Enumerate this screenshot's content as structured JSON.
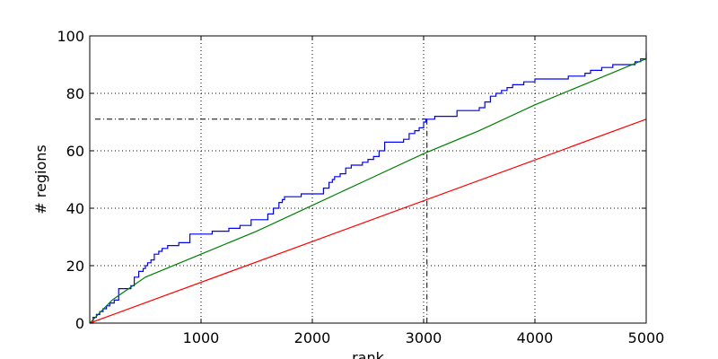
{
  "chart_data": {
    "type": "line",
    "title": "",
    "xlabel": "rank",
    "ylabel": "# regions",
    "xlim": [
      0,
      5000
    ],
    "ylim": [
      0,
      100
    ],
    "xticks": [
      1000,
      2000,
      3000,
      4000,
      5000
    ],
    "yticks": [
      0,
      20,
      40,
      60,
      80,
      100
    ],
    "grid": true,
    "series": [
      {
        "color": "#0000ff",
        "style": "step",
        "x": [
          0,
          30,
          60,
          90,
          120,
          150,
          180,
          220,
          260,
          300,
          370,
          400,
          440,
          480,
          500,
          520,
          550,
          580,
          620,
          650,
          700,
          800,
          900,
          1000,
          1100,
          1250,
          1350,
          1450,
          1600,
          1650,
          1700,
          1730,
          1750,
          1800,
          1900,
          2050,
          2100,
          2150,
          2180,
          2200,
          2250,
          2300,
          2350,
          2450,
          2500,
          2550,
          2600,
          2650,
          2750,
          2820,
          2870,
          2920,
          2960,
          3000,
          3020,
          3050,
          3100,
          3200,
          3300,
          3500,
          3550,
          3600,
          3620,
          3650,
          3700,
          3750,
          3800,
          3900,
          4000,
          4150,
          4300,
          4450,
          4500,
          4600,
          4700,
          4900,
          4950,
          5000
        ],
        "y": [
          0,
          2,
          3,
          4,
          5,
          6,
          7,
          8,
          12,
          12,
          13,
          16,
          18,
          19,
          20,
          21,
          22,
          24,
          25,
          26,
          27,
          28,
          31,
          31,
          32,
          33,
          34,
          36,
          38,
          40,
          42,
          43,
          44,
          44,
          45,
          45,
          47,
          49,
          50,
          51,
          52,
          54,
          55,
          56,
          57,
          58,
          60,
          63,
          63,
          64,
          66,
          67,
          68,
          70,
          71,
          71,
          72,
          72,
          74,
          75,
          77,
          79,
          79,
          80,
          81,
          82,
          83,
          84,
          85,
          85,
          86,
          87,
          88,
          89,
          90,
          91,
          92,
          94
        ]
      },
      {
        "color": "#007f00",
        "style": "line",
        "x": [
          0,
          200,
          500,
          1000,
          1500,
          2000,
          2500,
          3000,
          3500,
          4000,
          4500,
          5000
        ],
        "y": [
          0,
          8,
          16,
          24,
          32,
          41,
          50,
          59,
          67,
          76,
          84,
          92
        ]
      },
      {
        "color": "#ff0000",
        "style": "line",
        "x": [
          0,
          5000
        ],
        "y": [
          0,
          71
        ]
      }
    ],
    "reference_lines": {
      "color": "#000000",
      "style": "dashdot",
      "h": {
        "y": 71,
        "x_from": 0,
        "x_to": 3030
      },
      "v": {
        "x": 3030,
        "y_from": 0,
        "y_to": 71
      }
    }
  }
}
